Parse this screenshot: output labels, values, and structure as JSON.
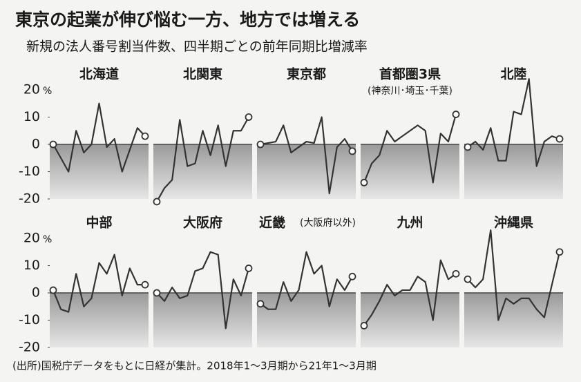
{
  "title": "東京の起業が伸び悩む一方、地方では増える",
  "subtitle": "新規の法人番号割当件数、四半期ごとの前年同期比増減率",
  "note": "(出所)国税庁データをもとに日経が集計。2018年1～3月期から21年1～3月期",
  "chart_data": [
    {
      "type": "line",
      "title": "北海道",
      "y_unit": "%",
      "ylim": [
        -20,
        20
      ],
      "yticks": [
        20,
        10,
        0,
        -10,
        -20
      ],
      "values": [
        0,
        -5,
        -10,
        5,
        -3,
        0,
        15,
        -1,
        2,
        -10,
        -2,
        6,
        3
      ]
    },
    {
      "type": "line",
      "title": "北関東",
      "ylim": [
        -20,
        20
      ],
      "values": [
        -21,
        -16,
        -13,
        9,
        -8,
        -7,
        5,
        -4,
        7,
        -8,
        5,
        5,
        10
      ]
    },
    {
      "type": "line",
      "title": "東京都",
      "ylim": [
        -20,
        20
      ],
      "values": [
        0,
        0.5,
        1,
        7,
        -3,
        -1,
        1,
        0.5,
        10,
        -18,
        -1,
        2,
        -2.5
      ]
    },
    {
      "type": "line",
      "title": "首都圏3県",
      "subtitle": "(神奈川･埼玉･千葉)",
      "ylim": [
        -20,
        20
      ],
      "values": [
        -14,
        -7,
        -4,
        5,
        1,
        3,
        5,
        7,
        5,
        -14,
        4,
        1,
        11
      ]
    },
    {
      "type": "line",
      "title": "北陸",
      "ylim": [
        -20,
        20
      ],
      "values": [
        -1,
        1,
        -2,
        6,
        -6,
        -6,
        12,
        11,
        24,
        -8,
        1,
        3,
        2
      ]
    },
    {
      "type": "line",
      "title": "中部",
      "y_unit": "%",
      "ylim": [
        -20,
        20
      ],
      "yticks": [
        20,
        10,
        0,
        -10,
        -20
      ],
      "values": [
        1,
        -6,
        -7,
        7,
        -5,
        -2,
        11,
        7,
        14,
        -1,
        9,
        3,
        3
      ]
    },
    {
      "type": "line",
      "title": "大阪府",
      "ylim": [
        -20,
        20
      ],
      "values": [
        0,
        -3,
        2,
        -2,
        -1,
        8,
        9,
        15,
        14,
        -13,
        5,
        -1,
        9
      ]
    },
    {
      "type": "line",
      "title": "近畿",
      "subtitle": "(大阪府以外)",
      "ylim": [
        -20,
        20
      ],
      "values": [
        -4,
        -6,
        -6,
        4,
        -3,
        1,
        15,
        7,
        10,
        -5,
        5,
        1,
        6
      ]
    },
    {
      "type": "line",
      "title": "九州",
      "ylim": [
        -20,
        20
      ],
      "values": [
        -12,
        -8,
        -3,
        3,
        -1,
        1,
        1,
        6,
        4,
        -10,
        12,
        5,
        7
      ]
    },
    {
      "type": "line",
      "title": "沖縄県",
      "ylim": [
        -20,
        20
      ],
      "values": [
        5,
        2,
        5,
        23,
        -10,
        -2,
        -4,
        -2,
        -2,
        -6,
        -9,
        3,
        15
      ]
    }
  ]
}
